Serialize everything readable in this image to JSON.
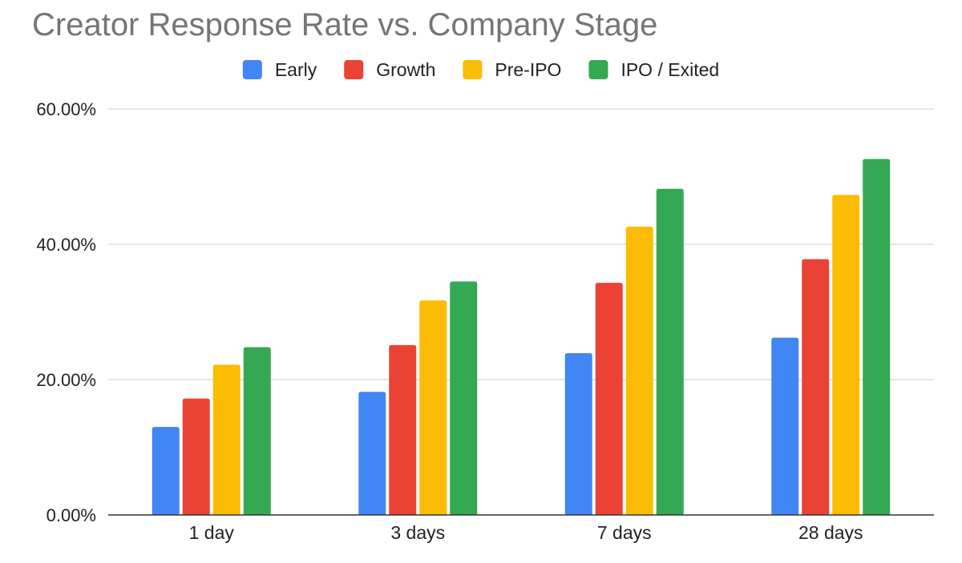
{
  "chart_data": {
    "type": "bar",
    "title": "Creator Response Rate vs. Company Stage",
    "xlabel": "",
    "ylabel": "",
    "ylim": [
      0,
      60
    ],
    "y_ticks": [
      0,
      20,
      40,
      60
    ],
    "y_tick_labels": [
      "0.00%",
      "20.00%",
      "40.00%",
      "60.00%"
    ],
    "grid": true,
    "legend_position": "top-center",
    "categories": [
      "1 day",
      "3 days",
      "7 days",
      "28 days"
    ],
    "series": [
      {
        "name": "Early",
        "color": "#4285F4",
        "values": [
          13.0,
          18.2,
          23.9,
          26.2
        ]
      },
      {
        "name": "Growth",
        "color": "#EA4335",
        "values": [
          17.2,
          25.1,
          34.3,
          37.8
        ]
      },
      {
        "name": "Pre-IPO",
        "color": "#FBBC04",
        "values": [
          22.2,
          31.7,
          42.6,
          47.3
        ]
      },
      {
        "name": "IPO / Exited",
        "color": "#34A853",
        "values": [
          24.8,
          34.5,
          48.2,
          52.6
        ]
      }
    ]
  }
}
